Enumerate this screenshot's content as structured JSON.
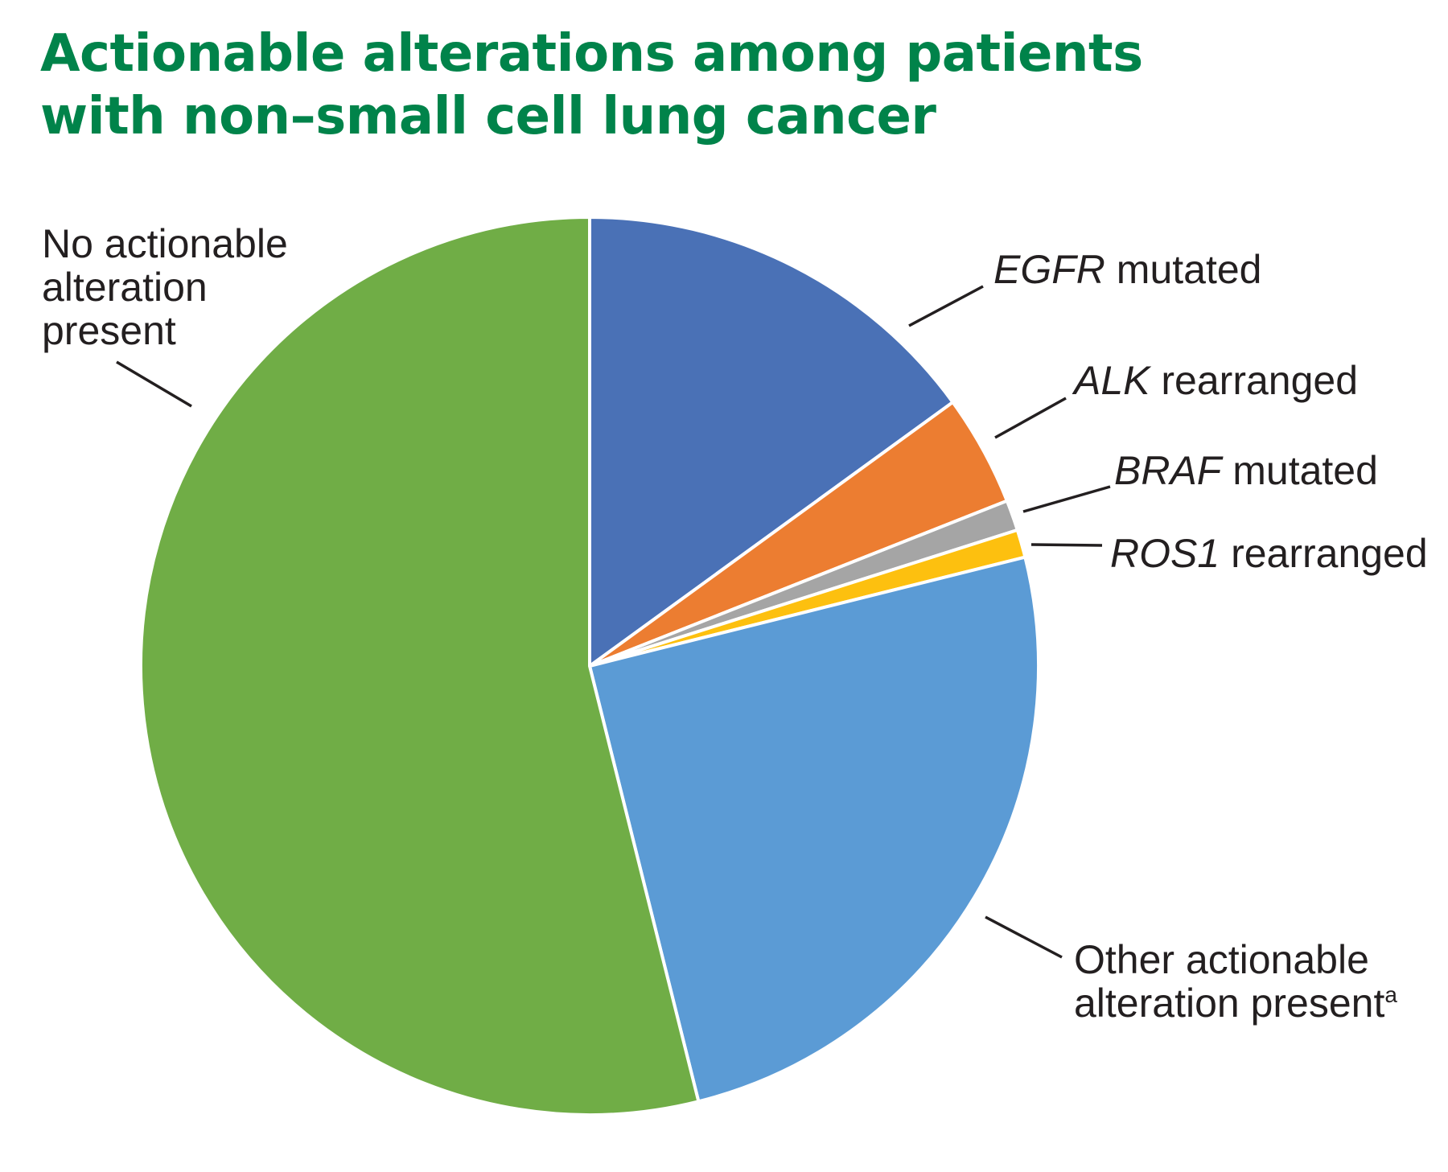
{
  "title_lines": [
    "Actionable alterations among patients",
    "with non–small cell lung cancer"
  ],
  "chart_data": {
    "type": "pie",
    "title": "Actionable alterations among patients with non–small cell lung cancer",
    "start": "12 o'clock, clockwise",
    "slices": [
      {
        "gene": "EGFR",
        "text": " mutated",
        "value": 15.0,
        "color": "#4a71b6"
      },
      {
        "gene": "ALK",
        "text": " rearranged",
        "value": 4.0,
        "color": "#ec7d31"
      },
      {
        "gene": "BRAF",
        "text": " mutated",
        "value": 1.1,
        "color": "#a5a5a5"
      },
      {
        "gene": "ROS1",
        "text": " rearranged",
        "value": 1.0,
        "color": "#fdc00f"
      },
      {
        "lines": [
          "Other actionable",
          "alteration present"
        ],
        "sup": "a",
        "value": 25.0,
        "color": "#5b9bd5"
      },
      {
        "lines": [
          "No actionable",
          "alteration",
          "present"
        ],
        "value": 53.9,
        "color": "#70ad46"
      }
    ]
  }
}
